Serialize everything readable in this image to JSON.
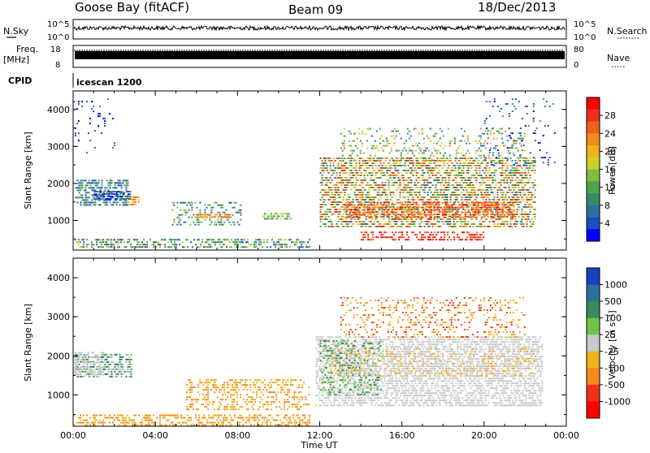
{
  "header": {
    "station": "Goose Bay (fitACF)",
    "beam": "Beam 09",
    "date": "18/Dec/2013"
  },
  "strip_noise": {
    "left_label": "N.Sky",
    "right_label": "N.Search",
    "left_ticks": [
      "10^5",
      "10^0"
    ],
    "right_ticks": [
      "10^5",
      "10^0"
    ]
  },
  "strip_freq": {
    "left_label_line1": "Freq.",
    "left_label_line2": "[MHz]",
    "left_ticks": [
      "18",
      "8"
    ],
    "right_label": "Nave",
    "right_ticks": [
      "80",
      "0"
    ],
    "cpid_label": "CPID",
    "cpid_value": "icescan 1200"
  },
  "chart_data": [
    {
      "type": "heatmap",
      "title": "",
      "xlabel": "",
      "ylabel": "Slant Range [km]",
      "x_range_hours": [
        0,
        24
      ],
      "ylim": [
        200,
        4500
      ],
      "yticks": [
        "1000",
        "2000",
        "3000",
        "4000"
      ],
      "colorbar": {
        "label": "Power [dB]",
        "range": [
          0,
          32
        ],
        "ticks": [
          "4",
          "8",
          "12",
          "16",
          "20",
          "24",
          "28"
        ],
        "colors": [
          "#0000ff",
          "#1a4fbf",
          "#2f6f9f",
          "#3a8a6a",
          "#4fa34f",
          "#7fbf3f",
          "#c8d22a",
          "#f0b21a",
          "#f08a1a",
          "#f06018",
          "#f03018",
          "#ff0000"
        ]
      }
    },
    {
      "type": "heatmap",
      "title": "",
      "xlabel": "Time UT",
      "ylabel": "Slant Range [km]",
      "x_range_hours": [
        0,
        24
      ],
      "ylim": [
        200,
        4500
      ],
      "yticks": [
        "1000",
        "2000",
        "3000",
        "4000"
      ],
      "xticks": [
        "00:00",
        "04:00",
        "08:00",
        "12:00",
        "16:00",
        "20:00",
        "00:00"
      ],
      "colorbar": {
        "label": "Velocity [m s⁻¹]",
        "ticks": [
          "1000",
          "500",
          "100",
          "25",
          "-25",
          "-100",
          "-500",
          "-1000"
        ],
        "colors": [
          "#1a3fbf",
          "#2f6fa0",
          "#3a8a5a",
          "#6fc34a",
          "#c8c8c8",
          "#f0b21a",
          "#f08a1a",
          "#f03018",
          "#ff0000"
        ]
      }
    }
  ]
}
